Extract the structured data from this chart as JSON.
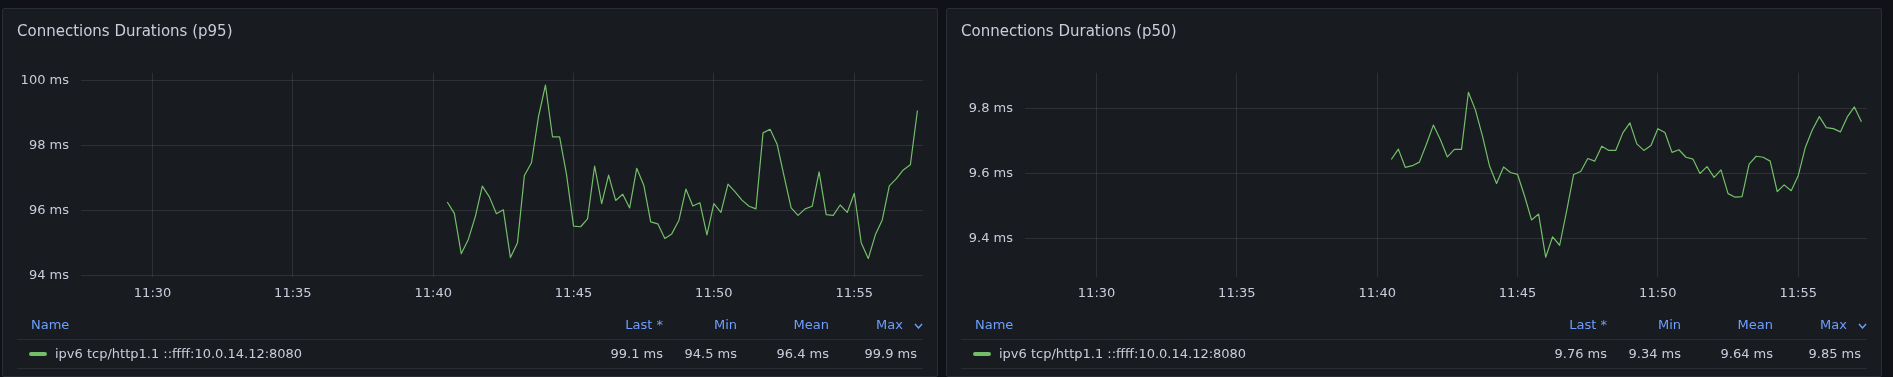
{
  "chart_data": [
    {
      "type": "line",
      "title": "Connections Durations (p95)",
      "legend": "bottom",
      "grid": true,
      "marker": "none",
      "line_style": "solid",
      "x": [
        11.675,
        11.6792,
        11.6833,
        11.6875,
        11.6917,
        11.6958,
        11.7,
        11.7042,
        11.7083,
        11.7125,
        11.7167,
        11.7208,
        11.725,
        11.7292,
        11.7333,
        11.7375,
        11.7417,
        11.7458,
        11.75,
        11.7542,
        11.7583,
        11.7625,
        11.7667,
        11.7708,
        11.775,
        11.7792,
        11.7833,
        11.7875,
        11.7917,
        11.7958,
        11.8,
        11.8042,
        11.8083,
        11.8125,
        11.8167,
        11.8208,
        11.825,
        11.8292,
        11.8333,
        11.8375,
        11.8417,
        11.8458,
        11.85,
        11.8542,
        11.8583,
        11.8625,
        11.8667,
        11.8708,
        11.875,
        11.8792,
        11.8833,
        11.8875,
        11.8917,
        11.8958,
        11.9,
        11.9042,
        11.9083,
        11.9125,
        11.9167,
        11.9208,
        11.925,
        11.9292,
        11.9333,
        11.9375,
        11.9417,
        11.9458,
        11.95,
        11.9542
      ],
      "series": [
        {
          "name": "ipv6 tcp/http1.1 ::ffff:10.0.14.12:8080",
          "color": "#73bf69",
          "values": [
            96.27,
            95.92,
            94.68,
            95.12,
            95.83,
            96.76,
            96.43,
            95.91,
            96.03,
            94.56,
            95.02,
            97.09,
            97.48,
            98.91,
            99.87,
            98.28,
            98.28,
            97.12,
            95.53,
            95.51,
            95.75,
            97.38,
            96.22,
            97.1,
            96.32,
            96.51,
            96.09,
            97.31,
            96.79,
            95.66,
            95.6,
            95.15,
            95.29,
            95.7,
            96.67,
            96.15,
            96.25,
            95.26,
            96.22,
            95.95,
            96.82,
            96.59,
            96.33,
            96.14,
            96.06,
            98.4,
            98.51,
            98.06,
            97.07,
            96.09,
            95.86,
            96.06,
            96.14,
            97.2,
            95.88,
            95.86,
            96.18,
            95.95,
            96.54,
            95.02,
            94.53,
            95.26,
            95.72,
            96.77,
            96.99,
            97.26,
            97.42,
            99.09
          ]
        }
      ],
      "xlim": [
        11.4575,
        11.9575
      ],
      "xticks": [
        {
          "value": 11.5,
          "label": "11:30"
        },
        {
          "value": 11.5833,
          "label": "11:35"
        },
        {
          "value": 11.6667,
          "label": "11:40"
        },
        {
          "value": 11.75,
          "label": "11:45"
        },
        {
          "value": 11.8333,
          "label": "11:50"
        },
        {
          "value": 11.9167,
          "label": "11:55"
        }
      ],
      "ylim": [
        93.95,
        100.25
      ],
      "yticks": [
        {
          "value": 94,
          "label": "94 ms"
        },
        {
          "value": 96,
          "label": "96 ms"
        },
        {
          "value": 98,
          "label": "98 ms"
        },
        {
          "value": 100,
          "label": "100 ms"
        }
      ],
      "annotations": [
        "Name",
        "Last *",
        "Min",
        "Mean",
        "Max",
        "99.1 ms",
        "94.5 ms",
        "96.4 ms",
        "99.9 ms"
      ]
    },
    {
      "type": "line",
      "title": "Connections Durations (p50)",
      "legend": "bottom",
      "grid": true,
      "marker": "none",
      "line_style": "solid",
      "x": [
        11.675,
        11.6792,
        11.6833,
        11.6875,
        11.6917,
        11.6958,
        11.7,
        11.7042,
        11.7083,
        11.7125,
        11.7167,
        11.7208,
        11.725,
        11.7292,
        11.7333,
        11.7375,
        11.7417,
        11.7458,
        11.75,
        11.7542,
        11.7583,
        11.7625,
        11.7667,
        11.7708,
        11.775,
        11.7792,
        11.7833,
        11.7875,
        11.7917,
        11.7958,
        11.8,
        11.8042,
        11.8083,
        11.8125,
        11.8167,
        11.8208,
        11.825,
        11.8292,
        11.8333,
        11.8375,
        11.8417,
        11.8458,
        11.85,
        11.8542,
        11.8583,
        11.8625,
        11.8667,
        11.8708,
        11.875,
        11.8792,
        11.8833,
        11.8875,
        11.8917,
        11.8958,
        11.9,
        11.9042,
        11.9083,
        11.9125,
        11.9167,
        11.9208,
        11.925,
        11.9292,
        11.9333,
        11.9375,
        11.9417,
        11.9458,
        11.95,
        11.9542
      ],
      "series": [
        {
          "name": "ipv6 tcp/http1.1 ::ffff:10.0.14.12:8080",
          "color": "#73bf69",
          "values": [
            9.643,
            9.675,
            9.619,
            9.624,
            9.635,
            9.689,
            9.749,
            9.704,
            9.651,
            9.674,
            9.674,
            9.85,
            9.795,
            9.714,
            9.624,
            9.569,
            9.62,
            9.603,
            9.597,
            9.53,
            9.457,
            9.475,
            9.342,
            9.405,
            9.379,
            9.486,
            9.597,
            9.606,
            9.646,
            9.638,
            9.684,
            9.671,
            9.671,
            9.725,
            9.756,
            9.691,
            9.671,
            9.686,
            9.738,
            9.726,
            9.665,
            9.673,
            9.65,
            9.644,
            9.6,
            9.621,
            9.588,
            9.611,
            9.538,
            9.527,
            9.529,
            9.629,
            9.653,
            9.65,
            9.638,
            9.544,
            9.565,
            9.547,
            9.594,
            9.679,
            9.734,
            9.775,
            9.741,
            9.738,
            9.728,
            9.774,
            9.805,
            9.759
          ]
        }
      ],
      "xlim": [
        11.4575,
        11.9575
      ],
      "xticks": [
        {
          "value": 11.5,
          "label": "11:30"
        },
        {
          "value": 11.5833,
          "label": "11:35"
        },
        {
          "value": 11.6667,
          "label": "11:40"
        },
        {
          "value": 11.75,
          "label": "11:45"
        },
        {
          "value": 11.8333,
          "label": "11:50"
        },
        {
          "value": 11.9167,
          "label": "11:55"
        }
      ],
      "ylim": [
        9.28,
        9.91
      ],
      "yticks": [
        {
          "value": 9.4,
          "label": "9.4 ms"
        },
        {
          "value": 9.6,
          "label": "9.6 ms"
        },
        {
          "value": 9.8,
          "label": "9.8 ms"
        }
      ],
      "annotations": [
        "Name",
        "Last *",
        "Min",
        "Mean",
        "Max",
        "9.76 ms",
        "9.34 ms",
        "9.64 ms",
        "9.85 ms"
      ]
    }
  ]
}
